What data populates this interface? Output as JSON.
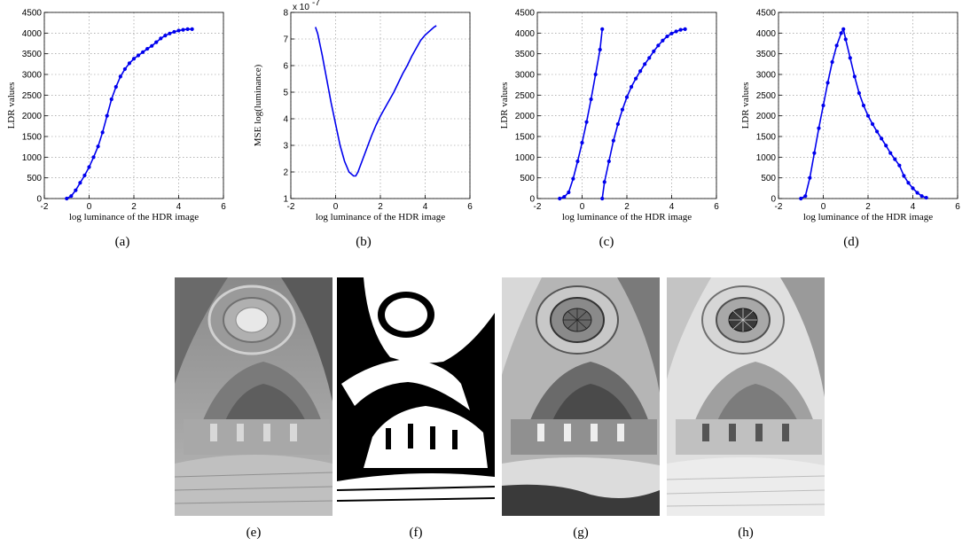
{
  "figure": {
    "captions": [
      "(a)",
      "(b)",
      "(c)",
      "(d)",
      "(e)",
      "(f)",
      "(g)",
      "(h)"
    ]
  },
  "chart_data": [
    {
      "type": "line",
      "xlabel": "log luminance of the HDR image",
      "ylabel": "LDR values",
      "xlim": [
        -2,
        6
      ],
      "ylim": [
        0,
        4500
      ],
      "xticks": [
        -2,
        0,
        2,
        4,
        6
      ],
      "yticks": [
        0,
        500,
        1000,
        1500,
        2000,
        2500,
        3000,
        3500,
        4000,
        4500
      ],
      "grid": true,
      "color": "#0000ee",
      "markers": true,
      "series": [
        {
          "x": [
            -1.0,
            -0.8,
            -0.6,
            -0.4,
            -0.2,
            0.0,
            0.2,
            0.4,
            0.6,
            0.8,
            1.0,
            1.2,
            1.4,
            1.6,
            1.8,
            2.0,
            2.2,
            2.4,
            2.6,
            2.8,
            3.0,
            3.2,
            3.4,
            3.6,
            3.8,
            4.0,
            4.2,
            4.4,
            4.6
          ],
          "y": [
            0,
            60,
            200,
            380,
            560,
            760,
            1000,
            1260,
            1600,
            2000,
            2400,
            2700,
            2950,
            3130,
            3270,
            3380,
            3460,
            3540,
            3620,
            3690,
            3780,
            3870,
            3940,
            3990,
            4030,
            4060,
            4080,
            4095,
            4095
          ]
        }
      ]
    },
    {
      "type": "line",
      "xlabel": "log luminance of the HDR image",
      "ylabel": "MSE log(luminance)",
      "scale_label": "x 10",
      "scale_exponent": "-7",
      "xlim": [
        -2,
        6
      ],
      "ylim": [
        1,
        8
      ],
      "xticks": [
        -2,
        0,
        2,
        4,
        6
      ],
      "yticks": [
        1,
        2,
        3,
        4,
        5,
        6,
        7,
        8
      ],
      "grid": true,
      "color": "#0000ee",
      "markers": false,
      "series": [
        {
          "x": [
            -0.9,
            -0.8,
            -0.6,
            -0.4,
            -0.2,
            0.0,
            0.2,
            0.4,
            0.6,
            0.8,
            0.9,
            1.0,
            1.2,
            1.4,
            1.6,
            1.8,
            2.0,
            2.2,
            2.4,
            2.6,
            2.8,
            3.0,
            3.2,
            3.4,
            3.6,
            3.8,
            4.0,
            4.2,
            4.4,
            4.5
          ],
          "y": [
            7.45,
            7.2,
            6.4,
            5.5,
            4.6,
            3.8,
            3.0,
            2.4,
            2.0,
            1.85,
            1.85,
            2.0,
            2.45,
            2.9,
            3.35,
            3.75,
            4.1,
            4.4,
            4.7,
            5.0,
            5.35,
            5.7,
            6.0,
            6.35,
            6.65,
            6.95,
            7.15,
            7.3,
            7.45,
            7.5
          ]
        }
      ]
    },
    {
      "type": "line",
      "xlabel": "log luminance of the HDR image",
      "ylabel": "LDR values",
      "xlim": [
        -2,
        6
      ],
      "ylim": [
        0,
        4500
      ],
      "xticks": [
        -2,
        0,
        2,
        4,
        6
      ],
      "yticks": [
        0,
        500,
        1000,
        1500,
        2000,
        2500,
        3000,
        3500,
        4000,
        4500
      ],
      "grid": true,
      "color": "#0000ee",
      "markers": true,
      "series": [
        {
          "x": [
            -1.0,
            -0.8,
            -0.6,
            -0.4,
            -0.2,
            0.0,
            0.2,
            0.4,
            0.6,
            0.8,
            0.9
          ],
          "y": [
            0,
            40,
            150,
            480,
            900,
            1350,
            1850,
            2400,
            3000,
            3600,
            4095
          ]
        },
        {
          "x": [
            0.9,
            1.0,
            1.2,
            1.4,
            1.6,
            1.8,
            2.0,
            2.2,
            2.4,
            2.6,
            2.8,
            3.0,
            3.2,
            3.4,
            3.6,
            3.8,
            4.0,
            4.2,
            4.4,
            4.6
          ],
          "y": [
            0,
            400,
            900,
            1400,
            1800,
            2150,
            2450,
            2700,
            2900,
            3080,
            3250,
            3400,
            3560,
            3700,
            3820,
            3920,
            3990,
            4040,
            4080,
            4095
          ]
        }
      ]
    },
    {
      "type": "line",
      "xlabel": "log luminance of the HDR image",
      "ylabel": "LDR values",
      "xlim": [
        -2,
        6
      ],
      "ylim": [
        0,
        4500
      ],
      "xticks": [
        -2,
        0,
        2,
        4,
        6
      ],
      "yticks": [
        0,
        500,
        1000,
        1500,
        2000,
        2500,
        3000,
        3500,
        4000,
        4500
      ],
      "grid": true,
      "color": "#0000ee",
      "markers": true,
      "series": [
        {
          "x": [
            -1.0,
            -0.8,
            -0.6,
            -0.4,
            -0.2,
            0.0,
            0.2,
            0.4,
            0.6,
            0.8,
            0.9,
            1.0,
            1.2,
            1.4,
            1.6,
            1.8,
            2.0,
            2.2,
            2.4,
            2.6,
            2.8,
            3.0,
            3.2,
            3.4,
            3.6,
            3.8,
            4.0,
            4.2,
            4.4,
            4.6
          ],
          "y": [
            0,
            60,
            500,
            1100,
            1700,
            2250,
            2800,
            3300,
            3700,
            4000,
            4095,
            3850,
            3400,
            2950,
            2550,
            2250,
            2000,
            1800,
            1620,
            1450,
            1280,
            1100,
            950,
            800,
            550,
            380,
            250,
            140,
            60,
            20
          ]
        }
      ]
    }
  ]
}
